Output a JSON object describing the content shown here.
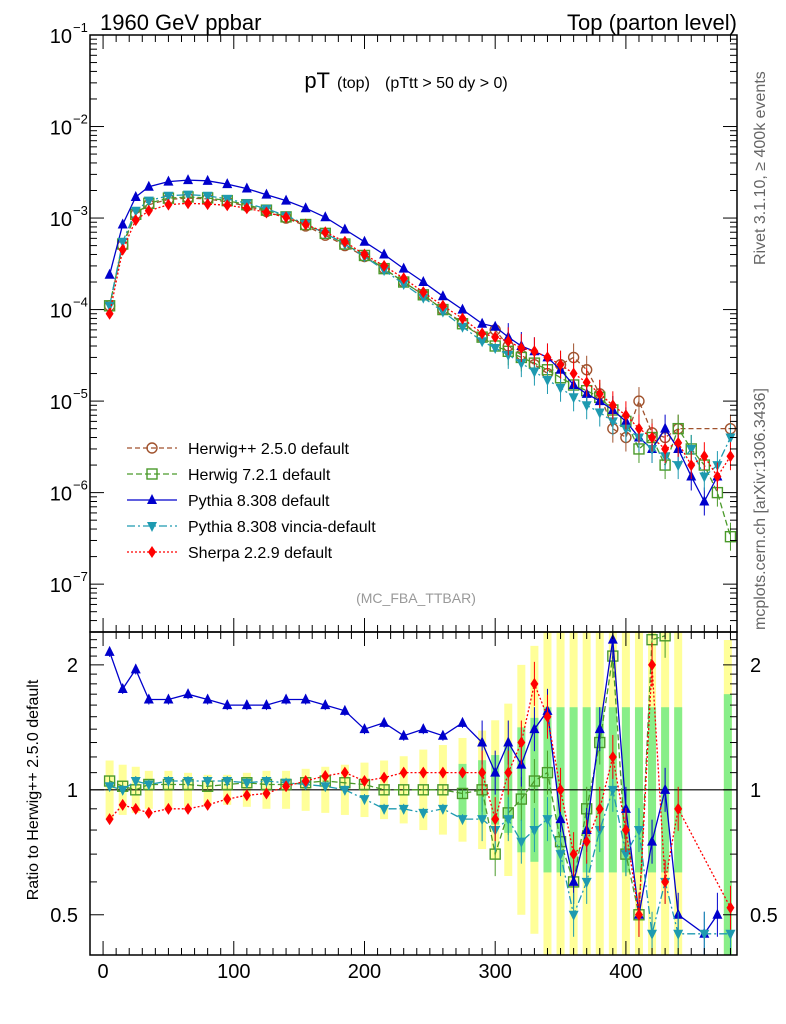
{
  "header": {
    "left_title": "1960 GeV ppbar",
    "right_title": "Top (parton level)"
  },
  "side_labels": {
    "top": "Rivet 3.1.10, ≥ 400k events",
    "bottom": "mcplots.cern.ch [arXiv:1306.3436]"
  },
  "chart_data": [
    {
      "id": "main",
      "type": "scatter",
      "title_main": "pT",
      "title_sub": "(top)",
      "title_cut": "(pTtt > 50 dy > 0)",
      "watermark": "(MC_FBA_TTBAR)",
      "yscale": "log",
      "xlim": [
        -10,
        485
      ],
      "ylim": [
        3e-08,
        0.1
      ],
      "ytick_labels": [
        {
          "value": 0.1,
          "base": "10",
          "exp": "−1"
        },
        {
          "value": 0.01,
          "base": "10",
          "exp": "−2"
        },
        {
          "value": 0.001,
          "base": "10",
          "exp": "−3"
        },
        {
          "value": 0.0001,
          "base": "10",
          "exp": "−4"
        },
        {
          "value": 1e-05,
          "base": "10",
          "exp": "−5"
        },
        {
          "value": 1e-06,
          "base": "10",
          "exp": "−6"
        },
        {
          "value": 1e-07,
          "base": "10",
          "exp": "−7"
        }
      ],
      "legend_position": "center-left",
      "series": [
        {
          "name": "Herwig++ 2.5.0 default",
          "color": "#a0522d",
          "marker": "circle-open",
          "dash": "5,3",
          "x": [
            5,
            15,
            25,
            35,
            50,
            65,
            80,
            95,
            110,
            125,
            140,
            155,
            170,
            185,
            200,
            215,
            230,
            245,
            260,
            275,
            290,
            300,
            310,
            320,
            330,
            340,
            350,
            360,
            370,
            380,
            390,
            400,
            410,
            420,
            430,
            440,
            480
          ],
          "y": [
            0.00011,
            0.0005,
            0.0011,
            0.0014,
            0.0016,
            0.00165,
            0.00162,
            0.0015,
            0.00135,
            0.00118,
            0.001,
            0.00082,
            0.00065,
            0.0005,
            0.00038,
            0.00028,
            0.0002,
            0.000145,
            0.0001,
            7.2e-05,
            5e-05,
            6e-05,
            4e-05,
            3.2e-05,
            2.5e-05,
            2e-05,
            2.5e-05,
            3e-05,
            2.2e-05,
            1.2e-05,
            5e-06,
            4e-06,
            1e-05,
            4.5e-06,
            4e-06,
            5e-06,
            5e-06
          ]
        },
        {
          "name": "Herwig 7.2.1 default",
          "color": "#4a9a2a",
          "marker": "square-open",
          "dash": "6,3",
          "x": [
            5,
            15,
            25,
            35,
            50,
            65,
            80,
            95,
            110,
            125,
            140,
            155,
            170,
            185,
            200,
            215,
            230,
            245,
            260,
            275,
            290,
            300,
            310,
            320,
            330,
            340,
            350,
            360,
            370,
            380,
            390,
            400,
            410,
            420,
            430,
            440,
            450,
            460,
            470,
            480
          ],
          "y": [
            0.00011,
            0.00052,
            0.0011,
            0.00145,
            0.00165,
            0.0017,
            0.00166,
            0.00155,
            0.0014,
            0.00122,
            0.00103,
            0.00085,
            0.00068,
            0.00052,
            0.00039,
            0.00028,
            0.0002,
            0.000145,
            0.0001,
            7e-05,
            5e-05,
            4e-05,
            3.5e-05,
            3e-05,
            2.6e-05,
            2.2e-05,
            1.8e-05,
            1.5e-05,
            1.3e-05,
            1.1e-05,
            8e-06,
            6e-06,
            3e-06,
            4e-06,
            2e-06,
            5e-06,
            3e-06,
            2e-06,
            1e-06,
            3.3e-07
          ]
        },
        {
          "name": "Pythia 8.308 default",
          "color": "#0000cc",
          "marker": "triangle-up",
          "dash": "",
          "x": [
            5,
            15,
            25,
            35,
            50,
            65,
            80,
            95,
            110,
            125,
            140,
            155,
            170,
            185,
            200,
            215,
            230,
            245,
            260,
            275,
            290,
            300,
            310,
            320,
            330,
            340,
            350,
            360,
            370,
            380,
            390,
            400,
            410,
            420,
            430,
            440,
            450,
            460,
            470
          ],
          "y": [
            0.00024,
            0.00085,
            0.0017,
            0.0022,
            0.0025,
            0.0026,
            0.00255,
            0.00235,
            0.0021,
            0.0018,
            0.00155,
            0.00128,
            0.00102,
            0.00075,
            0.00055,
            0.0004,
            0.00028,
            0.0002,
            0.00014,
            0.0001,
            7e-05,
            6.5e-05,
            5e-05,
            4e-05,
            3.5e-05,
            3e-05,
            2.2e-05,
            1.5e-05,
            1.2e-05,
            1e-05,
            8e-06,
            6e-06,
            4e-06,
            3e-06,
            5e-06,
            3e-06,
            1.5e-06,
            8e-07,
            1.5e-06
          ]
        },
        {
          "name": "Pythia 8.308 vincia-default",
          "color": "#1e9ab0",
          "marker": "triangle-down",
          "dash": "8,3,2,3",
          "x": [
            5,
            15,
            25,
            35,
            50,
            65,
            80,
            95,
            110,
            125,
            140,
            155,
            170,
            185,
            200,
            215,
            230,
            245,
            260,
            275,
            290,
            300,
            310,
            320,
            330,
            340,
            350,
            360,
            370,
            380,
            390,
            400,
            410,
            420,
            430,
            440,
            450,
            460,
            470,
            480
          ],
          "y": [
            0.00011,
            0.00055,
            0.0012,
            0.00155,
            0.00175,
            0.0018,
            0.00175,
            0.00162,
            0.00145,
            0.00126,
            0.00106,
            0.00086,
            0.00068,
            0.00052,
            0.00038,
            0.00027,
            0.00019,
            0.000135,
            9.5e-05,
            6.5e-05,
            4.5e-05,
            3.8e-05,
            3.2e-05,
            2.6e-05,
            2.1e-05,
            1.7e-05,
            1.4e-05,
            1.1e-05,
            9e-06,
            7.5e-06,
            6e-06,
            5e-06,
            4e-06,
            3e-06,
            2.5e-06,
            2e-06,
            3e-06,
            1.5e-06,
            2e-06,
            4e-06
          ]
        },
        {
          "name": "Sherpa 2.2.9 default",
          "color": "#ff0000",
          "marker": "diamond",
          "dash": "2,2",
          "x": [
            5,
            15,
            25,
            35,
            50,
            65,
            80,
            95,
            110,
            125,
            140,
            155,
            170,
            185,
            200,
            215,
            230,
            245,
            260,
            275,
            290,
            300,
            310,
            320,
            330,
            340,
            350,
            360,
            370,
            380,
            390,
            400,
            410,
            420,
            430,
            440,
            450,
            460,
            470,
            480
          ],
          "y": [
            9e-05,
            0.00045,
            0.00095,
            0.0012,
            0.0014,
            0.00145,
            0.00142,
            0.00138,
            0.00128,
            0.00115,
            0.00102,
            0.00085,
            0.0007,
            0.00055,
            0.0004,
            0.0003,
            0.00022,
            0.000155,
            0.00011,
            8e-05,
            5.5e-05,
            5e-05,
            4.5e-05,
            3.8e-05,
            3.5e-05,
            3e-05,
            2.5e-05,
            2e-05,
            1.6e-05,
            1.2e-05,
            9e-06,
            7e-06,
            5e-06,
            4e-06,
            3e-06,
            3.5e-06,
            2e-06,
            2.5e-06,
            1.5e-06,
            2.5e-06
          ]
        }
      ]
    },
    {
      "id": "ratio",
      "type": "line",
      "ylabel": "Ratio to Herwig++ 2.5.0 default",
      "yscale": "log",
      "xlim": [
        -10,
        485
      ],
      "ylim": [
        0.4,
        2.4
      ],
      "ytick_labels": [
        {
          "value": 0.5,
          "label": "0.5"
        },
        {
          "value": 1,
          "label": "1"
        },
        {
          "value": 2,
          "label": "2"
        }
      ],
      "xticks": [
        0,
        100,
        200,
        300,
        400
      ],
      "xtick_labels": [
        "0",
        "100",
        "200",
        "300",
        "400"
      ],
      "reference": 1,
      "band_yellow": [
        0.85,
        0.87,
        0.88,
        0.9,
        0.9,
        0.91,
        0.92,
        0.92,
        0.91,
        0.9,
        0.9,
        0.89,
        0.88,
        0.87,
        0.86,
        0.85,
        0.83,
        0.8,
        0.78,
        0.75,
        0.72,
        0.68,
        0.62,
        0.5,
        0.45,
        0.4,
        0.4,
        0.4,
        0.4,
        0.4,
        0.4,
        0.4,
        0.4,
        0.4,
        0.4,
        0.4
      ],
      "series": [
        {
          "name": "Herwig 7.2.1 default",
          "color": "#4a9a2a",
          "dash": "6,3",
          "x": [
            5,
            15,
            25,
            35,
            50,
            65,
            80,
            95,
            110,
            125,
            140,
            155,
            170,
            185,
            200,
            215,
            230,
            245,
            260,
            275,
            290,
            300,
            310,
            320,
            330,
            340,
            350,
            360,
            370,
            380,
            390,
            400,
            410,
            420,
            430
          ],
          "y": [
            1.05,
            1.02,
            1.0,
            1.03,
            1.03,
            1.03,
            1.02,
            1.03,
            1.04,
            1.03,
            1.03,
            1.04,
            1.05,
            1.04,
            1.03,
            1.0,
            1.0,
            1.0,
            1.0,
            0.98,
            1.0,
            0.7,
            0.88,
            0.95,
            1.05,
            1.1,
            0.75,
            0.6,
            0.9,
            1.3,
            2.1,
            0.7,
            0.5,
            2.3,
            2.35
          ]
        },
        {
          "name": "Pythia 8.308 default",
          "color": "#0000cc",
          "dash": "",
          "x": [
            5,
            15,
            25,
            35,
            50,
            65,
            80,
            95,
            110,
            125,
            140,
            155,
            170,
            185,
            200,
            215,
            230,
            245,
            260,
            275,
            290,
            300,
            310,
            320,
            330,
            340,
            350,
            360,
            370,
            380,
            390,
            400,
            410,
            420,
            430,
            440,
            460,
            470
          ],
          "y": [
            2.15,
            1.75,
            1.95,
            1.65,
            1.65,
            1.7,
            1.65,
            1.6,
            1.6,
            1.6,
            1.65,
            1.65,
            1.6,
            1.55,
            1.4,
            1.45,
            1.35,
            1.4,
            1.35,
            1.45,
            1.3,
            1.1,
            1.3,
            1.15,
            1.4,
            1.55,
            0.85,
            0.6,
            0.8,
            1.4,
            2.3,
            0.9,
            0.5,
            0.75,
            1.0,
            0.5,
            0.45,
            0.5
          ]
        },
        {
          "name": "Pythia 8.308 vincia-default",
          "color": "#1e9ab0",
          "dash": "8,3,2,3",
          "x": [
            5,
            15,
            25,
            35,
            50,
            65,
            80,
            95,
            110,
            125,
            140,
            155,
            170,
            185,
            200,
            215,
            230,
            245,
            260,
            275,
            290,
            300,
            310,
            320,
            330,
            340,
            350,
            360,
            370,
            380,
            390,
            400,
            410,
            420,
            430,
            440,
            460,
            480
          ],
          "y": [
            1.02,
            1.0,
            1.05,
            1.03,
            1.05,
            1.05,
            1.05,
            1.05,
            1.04,
            1.05,
            1.04,
            1.03,
            1.02,
            1.0,
            0.95,
            0.9,
            0.9,
            0.88,
            0.9,
            0.85,
            0.85,
            0.8,
            0.85,
            0.75,
            0.8,
            0.85,
            0.7,
            0.5,
            0.6,
            0.8,
            1.0,
            0.7,
            0.8,
            0.45,
            0.6,
            0.45,
            0.45,
            0.45
          ]
        },
        {
          "name": "Sherpa 2.2.9 default",
          "color": "#ff0000",
          "dash": "2,2",
          "x": [
            5,
            15,
            25,
            35,
            50,
            65,
            80,
            95,
            110,
            125,
            140,
            155,
            170,
            185,
            200,
            215,
            230,
            245,
            260,
            275,
            290,
            300,
            310,
            320,
            330,
            340,
            350,
            360,
            370,
            380,
            390,
            400,
            410,
            420,
            430,
            440,
            480
          ],
          "y": [
            0.85,
            0.92,
            0.9,
            0.88,
            0.9,
            0.9,
            0.92,
            0.95,
            0.97,
            0.98,
            1.02,
            1.05,
            1.08,
            1.1,
            1.05,
            1.07,
            1.1,
            1.1,
            1.1,
            1.1,
            1.1,
            0.85,
            1.1,
            1.3,
            1.8,
            1.5,
            1.0,
            0.7,
            0.75,
            0.9,
            1.2,
            0.8,
            0.5,
            2.0,
            0.6,
            0.9,
            0.52
          ]
        }
      ]
    }
  ]
}
